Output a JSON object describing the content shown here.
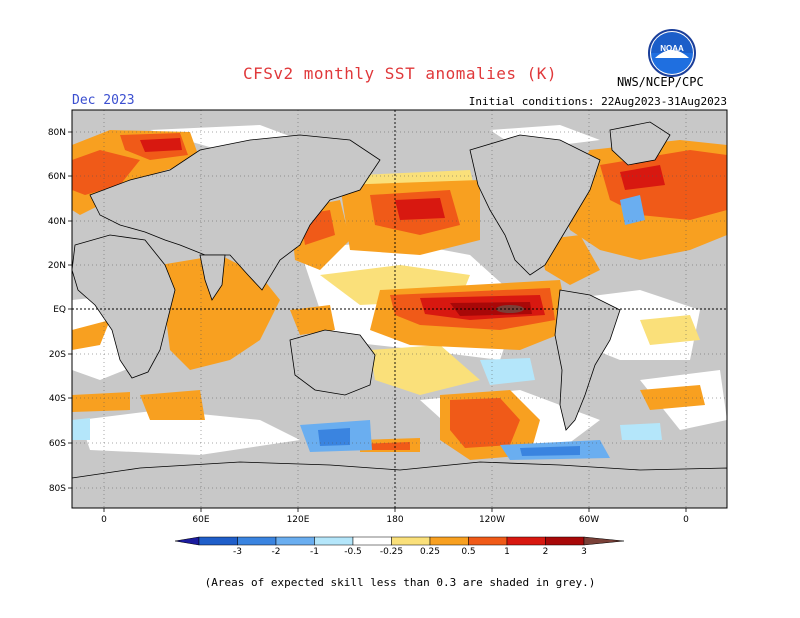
{
  "header": {
    "title": "CFSv2 monthly SST anomalies (K)",
    "month": "Dec 2023",
    "initial_conditions": "Initial conditions: 22Aug2023-31Aug2023",
    "org": "NWS/NCEP/CPC",
    "logo_text": "NOAA"
  },
  "map": {
    "lat_labels": [
      "80N",
      "60N",
      "40N",
      "20N",
      "EQ",
      "20S",
      "40S",
      "60S",
      "80S"
    ],
    "lon_labels": [
      "0",
      "60E",
      "120E",
      "180",
      "120W",
      "60W",
      "0"
    ],
    "background_color": "#c8c8c8",
    "land_color": "#c8c8c8",
    "grid_style": "dotted",
    "reference_lines": [
      "Equator",
      "180"
    ]
  },
  "colorbar": {
    "ticks": [
      "-3",
      "-2",
      "-1",
      "-0.5",
      "-0.25",
      "0.25",
      "0.5",
      "1",
      "2",
      "3"
    ],
    "colors": [
      "#1b1b9e",
      "#1f5ec9",
      "#3a84e0",
      "#6aaef0",
      "#b4e6fa",
      "#ffffff",
      "#fae07a",
      "#f8a020",
      "#f05a18",
      "#d81810",
      "#a80808",
      "#7a4038"
    ]
  },
  "footnote": "(Areas of expected skill less than 0.3 are shaded in grey.)"
}
